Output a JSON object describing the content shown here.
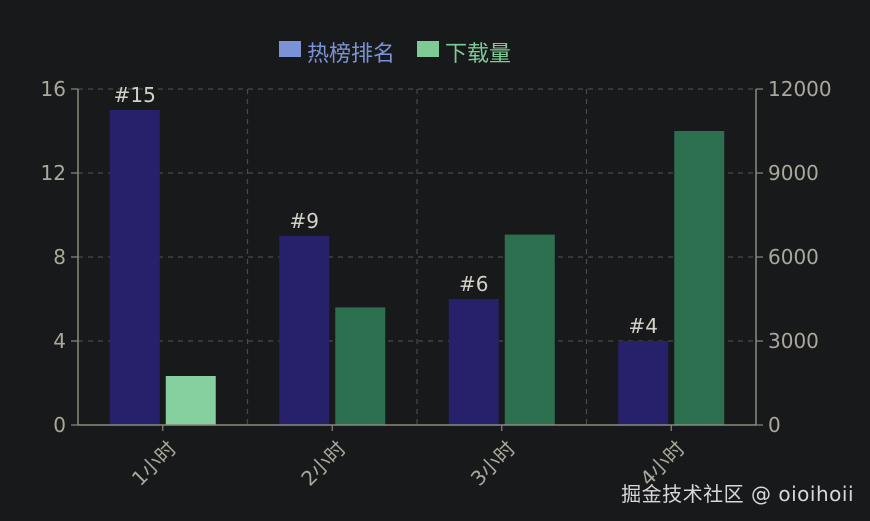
{
  "chart_data": {
    "type": "bar",
    "categories": [
      "1小时",
      "2小时",
      "3小时",
      "4小时"
    ],
    "series": [
      {
        "name": "热榜排名",
        "axis": "left",
        "color": "#27206b",
        "values": [
          15,
          9,
          6,
          4
        ]
      },
      {
        "name": "下载量",
        "axis": "right",
        "color": "#2c7050",
        "highlight_color": "#86cf9e",
        "values": [
          1750,
          4200,
          6800,
          10500
        ]
      }
    ],
    "bar_labels": [
      "#15",
      "#9",
      "#6",
      "#4"
    ],
    "legend": {
      "position": "top-center",
      "colors": [
        "#7b93d6",
        "#7fcb96"
      ]
    },
    "y_left": {
      "min": 0,
      "max": 16,
      "ticks": [
        "0",
        "4",
        "8",
        "12",
        "16"
      ]
    },
    "y_right": {
      "min": 0,
      "max": 12000,
      "ticks": [
        "0",
        "3000",
        "6000",
        "9000",
        "12000"
      ]
    },
    "grid": true,
    "highlighted_bar": {
      "series": 1,
      "category": 0
    }
  },
  "watermark": "掘金技术社区 @ oioihoii"
}
